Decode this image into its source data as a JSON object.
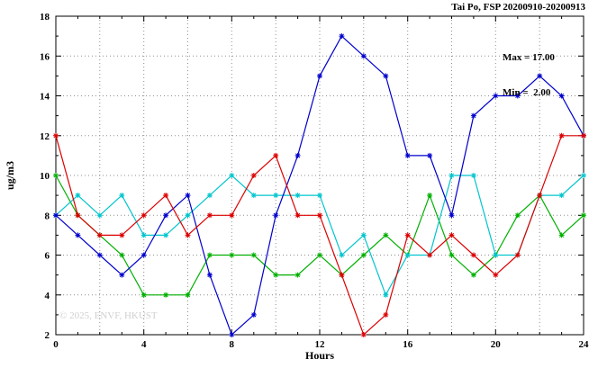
{
  "header": {
    "title": "Tai Po, FSP 20200910-20200913"
  },
  "annotation": {
    "max_label": "Max = 17.00",
    "min_label": "Min =  2.00"
  },
  "watermark": "© 2025, ENVF, HKUST",
  "chart_data": {
    "type": "line",
    "title": "Tai Po, FSP 20200910-20200913",
    "xlabel": "Hours",
    "ylabel": "ug/m3",
    "xlim": [
      0,
      24
    ],
    "ylim": [
      2,
      18
    ],
    "x_major_ticks": [
      0,
      4,
      8,
      12,
      16,
      20,
      24
    ],
    "y_major_ticks": [
      2,
      4,
      6,
      8,
      10,
      12,
      14,
      16,
      18
    ],
    "x_minor_step": 1,
    "grid": "dotted",
    "legend": "none",
    "marker": "asterisk",
    "max_value": 17.0,
    "min_value": 2.0,
    "x": [
      0,
      1,
      2,
      3,
      4,
      5,
      6,
      7,
      8,
      9,
      10,
      11,
      12,
      13,
      14,
      15,
      16,
      17,
      18,
      19,
      20,
      21,
      22,
      23,
      24
    ],
    "series": [
      {
        "name": "series-green",
        "color": "#00b000",
        "values": [
          10,
          8,
          7,
          6,
          4,
          4,
          4,
          6,
          6,
          6,
          5,
          5,
          6,
          5,
          6,
          7,
          6,
          9,
          6,
          5,
          6,
          8,
          9,
          7,
          8
        ]
      },
      {
        "name": "series-cyan",
        "color": "#00c5cd",
        "values": [
          8,
          9,
          8,
          9,
          7,
          7,
          8,
          9,
          10,
          9,
          9,
          9,
          9,
          6,
          7,
          4,
          6,
          6,
          10,
          10,
          6,
          6,
          9,
          9,
          10
        ]
      },
      {
        "name": "series-blue",
        "color": "#0000cd",
        "values": [
          8,
          7,
          6,
          5,
          6,
          8,
          9,
          5,
          2,
          3,
          8,
          11,
          15,
          17,
          16,
          15,
          11,
          11,
          8,
          13,
          14,
          14,
          15,
          14,
          12
        ]
      },
      {
        "name": "series-red",
        "color": "#dc0000",
        "values": [
          12,
          8,
          7,
          7,
          8,
          9,
          7,
          8,
          8,
          10,
          11,
          8,
          8,
          5,
          2,
          3,
          7,
          6,
          7,
          6,
          5,
          6,
          9,
          12,
          12
        ]
      }
    ]
  }
}
